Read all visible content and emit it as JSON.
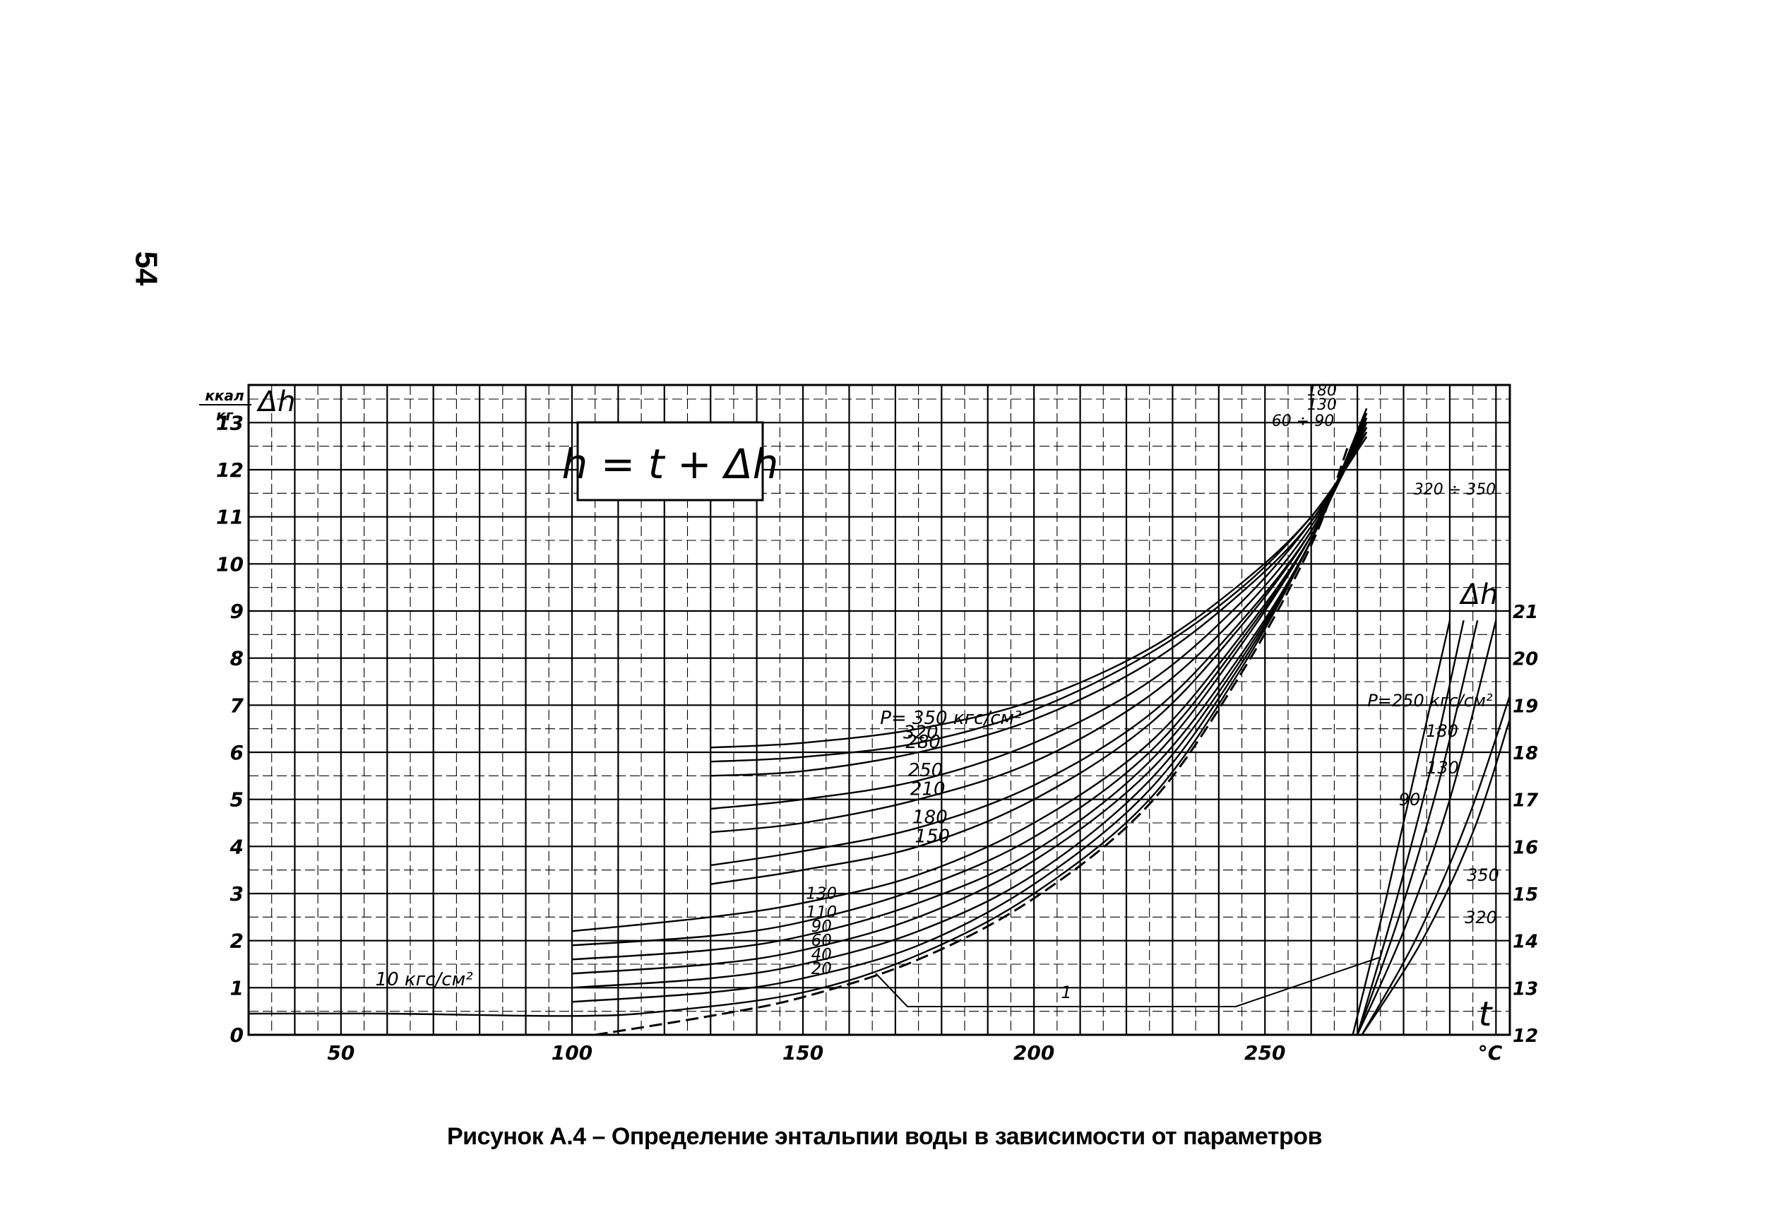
{
  "page_number": "54",
  "caption": "Рисунок А.4 – Определение энтальпии воды в зависимости от параметров",
  "chart_data": [
    {
      "type": "line",
      "formula": "h = t + Δh",
      "ylabel": "Δh",
      "yunit": "ккал/кг",
      "xlabel": "t",
      "xunit": "°С",
      "xlim": [
        30,
        303
      ],
      "ylim": [
        0,
        13.8
      ],
      "grid": true,
      "x_ticks": [
        "50",
        "100",
        "150",
        "200",
        "250"
      ],
      "y_ticks": [
        "0",
        "1",
        "2",
        "3",
        "4",
        "5",
        "6",
        "7",
        "8",
        "9",
        "10",
        "11",
        "12",
        "13"
      ],
      "series": [
        {
          "name": "10 кгс/см²",
          "points": [
            [
              30,
              0.45
            ],
            [
              60,
              0.45
            ],
            [
              100,
              0.4
            ],
            [
              120,
              0.5
            ],
            [
              150,
              0.9
            ],
            [
              175,
              1.7
            ],
            [
              200,
              3.0
            ],
            [
              225,
              5.0
            ],
            [
              245,
              7.8
            ],
            [
              260,
              10.5
            ],
            [
              272,
              13.3
            ]
          ]
        },
        {
          "name": "20",
          "points": [
            [
              100,
              0.7
            ],
            [
              130,
              0.9
            ],
            [
              150,
              1.2
            ],
            [
              175,
              1.9
            ],
            [
              200,
              3.2
            ],
            [
              225,
              5.2
            ],
            [
              245,
              7.9
            ],
            [
              260,
              10.5
            ],
            [
              272,
              13.3
            ]
          ]
        },
        {
          "name": "40",
          "points": [
            [
              100,
              1.0
            ],
            [
              130,
              1.2
            ],
            [
              150,
              1.5
            ],
            [
              175,
              2.2
            ],
            [
              200,
              3.4
            ],
            [
              225,
              5.4
            ],
            [
              245,
              8.0
            ],
            [
              260,
              10.5
            ],
            [
              272,
              13.2
            ]
          ]
        },
        {
          "name": "60",
          "points": [
            [
              100,
              1.3
            ],
            [
              130,
              1.5
            ],
            [
              150,
              1.8
            ],
            [
              175,
              2.5
            ],
            [
              200,
              3.7
            ],
            [
              225,
              5.6
            ],
            [
              245,
              8.1
            ],
            [
              260,
              10.5
            ],
            [
              272,
              13.2
            ]
          ]
        },
        {
          "name": "90",
          "points": [
            [
              100,
              1.6
            ],
            [
              130,
              1.8
            ],
            [
              150,
              2.1
            ],
            [
              175,
              2.8
            ],
            [
              200,
              3.9
            ],
            [
              225,
              5.8
            ],
            [
              245,
              8.3
            ],
            [
              260,
              10.6
            ],
            [
              272,
              13.1
            ]
          ]
        },
        {
          "name": "110",
          "points": [
            [
              100,
              1.9
            ],
            [
              130,
              2.1
            ],
            [
              150,
              2.4
            ],
            [
              175,
              3.1
            ],
            [
              200,
              4.2
            ],
            [
              225,
              6.0
            ],
            [
              245,
              8.4
            ],
            [
              260,
              10.6
            ],
            [
              272,
              13.1
            ]
          ]
        },
        {
          "name": "130",
          "points": [
            [
              100,
              2.2
            ],
            [
              130,
              2.5
            ],
            [
              150,
              2.8
            ],
            [
              175,
              3.4
            ],
            [
              200,
              4.5
            ],
            [
              225,
              6.2
            ],
            [
              245,
              8.5
            ],
            [
              260,
              10.6
            ],
            [
              272,
              13.0
            ]
          ]
        },
        {
          "name": "150",
          "points": [
            [
              130,
              3.2
            ],
            [
              150,
              3.5
            ],
            [
              175,
              4.0
            ],
            [
              200,
              5.0
            ],
            [
              225,
              6.6
            ],
            [
              245,
              8.7
            ],
            [
              260,
              10.7
            ],
            [
              272,
              13.0
            ]
          ]
        },
        {
          "name": "180",
          "points": [
            [
              130,
              3.6
            ],
            [
              150,
              3.9
            ],
            [
              175,
              4.4
            ],
            [
              200,
              5.3
            ],
            [
              225,
              6.8
            ],
            [
              245,
              8.8
            ],
            [
              260,
              10.7
            ],
            [
              272,
              12.9
            ]
          ]
        },
        {
          "name": "210",
          "points": [
            [
              130,
              4.3
            ],
            [
              150,
              4.5
            ],
            [
              175,
              5.0
            ],
            [
              200,
              5.8
            ],
            [
              225,
              7.2
            ],
            [
              245,
              9.0
            ],
            [
              260,
              10.8
            ],
            [
              272,
              12.9
            ]
          ]
        },
        {
          "name": "250",
          "points": [
            [
              130,
              4.8
            ],
            [
              150,
              5.0
            ],
            [
              175,
              5.4
            ],
            [
              200,
              6.2
            ],
            [
              225,
              7.5
            ],
            [
              245,
              9.2
            ],
            [
              260,
              10.9
            ],
            [
              272,
              12.8
            ]
          ]
        },
        {
          "name": "280",
          "points": [
            [
              130,
              5.5
            ],
            [
              150,
              5.6
            ],
            [
              175,
              6.0
            ],
            [
              200,
              6.7
            ],
            [
              225,
              7.9
            ],
            [
              245,
              9.4
            ],
            [
              260,
              10.9
            ],
            [
              272,
              12.8
            ]
          ]
        },
        {
          "name": "320",
          "points": [
            [
              130,
              5.8
            ],
            [
              150,
              5.9
            ],
            [
              175,
              6.2
            ],
            [
              200,
              6.9
            ],
            [
              225,
              8.1
            ],
            [
              245,
              9.5
            ],
            [
              260,
              11.0
            ],
            [
              272,
              12.7
            ]
          ]
        },
        {
          "name": "P= 350 кгс/см²",
          "points": [
            [
              130,
              6.1
            ],
            [
              150,
              6.2
            ],
            [
              175,
              6.5
            ],
            [
              200,
              7.1
            ],
            [
              225,
              8.2
            ],
            [
              245,
              9.6
            ],
            [
              260,
              11.0
            ],
            [
              272,
              12.7
            ]
          ]
        },
        {
          "name": "1",
          "dashed": true,
          "points": [
            [
              105,
              0.0
            ],
            [
              130,
              0.4
            ],
            [
              150,
              0.8
            ],
            [
              175,
              1.6
            ],
            [
              200,
              2.9
            ],
            [
              225,
              4.9
            ],
            [
              245,
              7.7
            ],
            [
              260,
              10.4
            ],
            [
              268,
              12.5
            ]
          ]
        }
      ],
      "top_labels": [
        "180",
        "130",
        "60 ÷ 90",
        "320 ÷ 350"
      ],
      "callout_1": "1"
    },
    {
      "type": "line",
      "ylabel": "Δh",
      "xlabel": "t",
      "xunit": "°С",
      "ylim": [
        12,
        21
      ],
      "y_ticks": [
        "12",
        "13",
        "14",
        "15",
        "16",
        "17",
        "18",
        "19",
        "20",
        "21"
      ],
      "series": [
        {
          "name": "P=250 кгс/см²",
          "points": [
            [
              270,
              12.0
            ],
            [
              280,
              14.2
            ],
            [
              290,
              17.0
            ],
            [
              300,
              20.8
            ]
          ]
        },
        {
          "name": "180",
          "points": [
            [
              270,
              12.0
            ],
            [
              279,
              14.5
            ],
            [
              288,
              17.5
            ],
            [
              296,
              20.8
            ]
          ]
        },
        {
          "name": "130",
          "points": [
            [
              270,
              12.0
            ],
            [
              278,
              14.7
            ],
            [
              286,
              17.7
            ],
            [
              293,
              20.8
            ]
          ]
        },
        {
          "name": "90",
          "points": [
            [
              269,
              12.0
            ],
            [
              276,
              14.8
            ],
            [
              283,
              17.8
            ],
            [
              290,
              20.8
            ]
          ]
        },
        {
          "name": "350",
          "points": [
            [
              271,
              12.0
            ],
            [
              284,
              14.0
            ],
            [
              295,
              16.3
            ],
            [
              303,
              18.7
            ]
          ]
        },
        {
          "name": "320",
          "points": [
            [
              271,
              12.0
            ],
            [
              283,
              14.1
            ],
            [
              294,
              16.6
            ],
            [
              303,
              19.2
            ]
          ]
        }
      ]
    }
  ]
}
